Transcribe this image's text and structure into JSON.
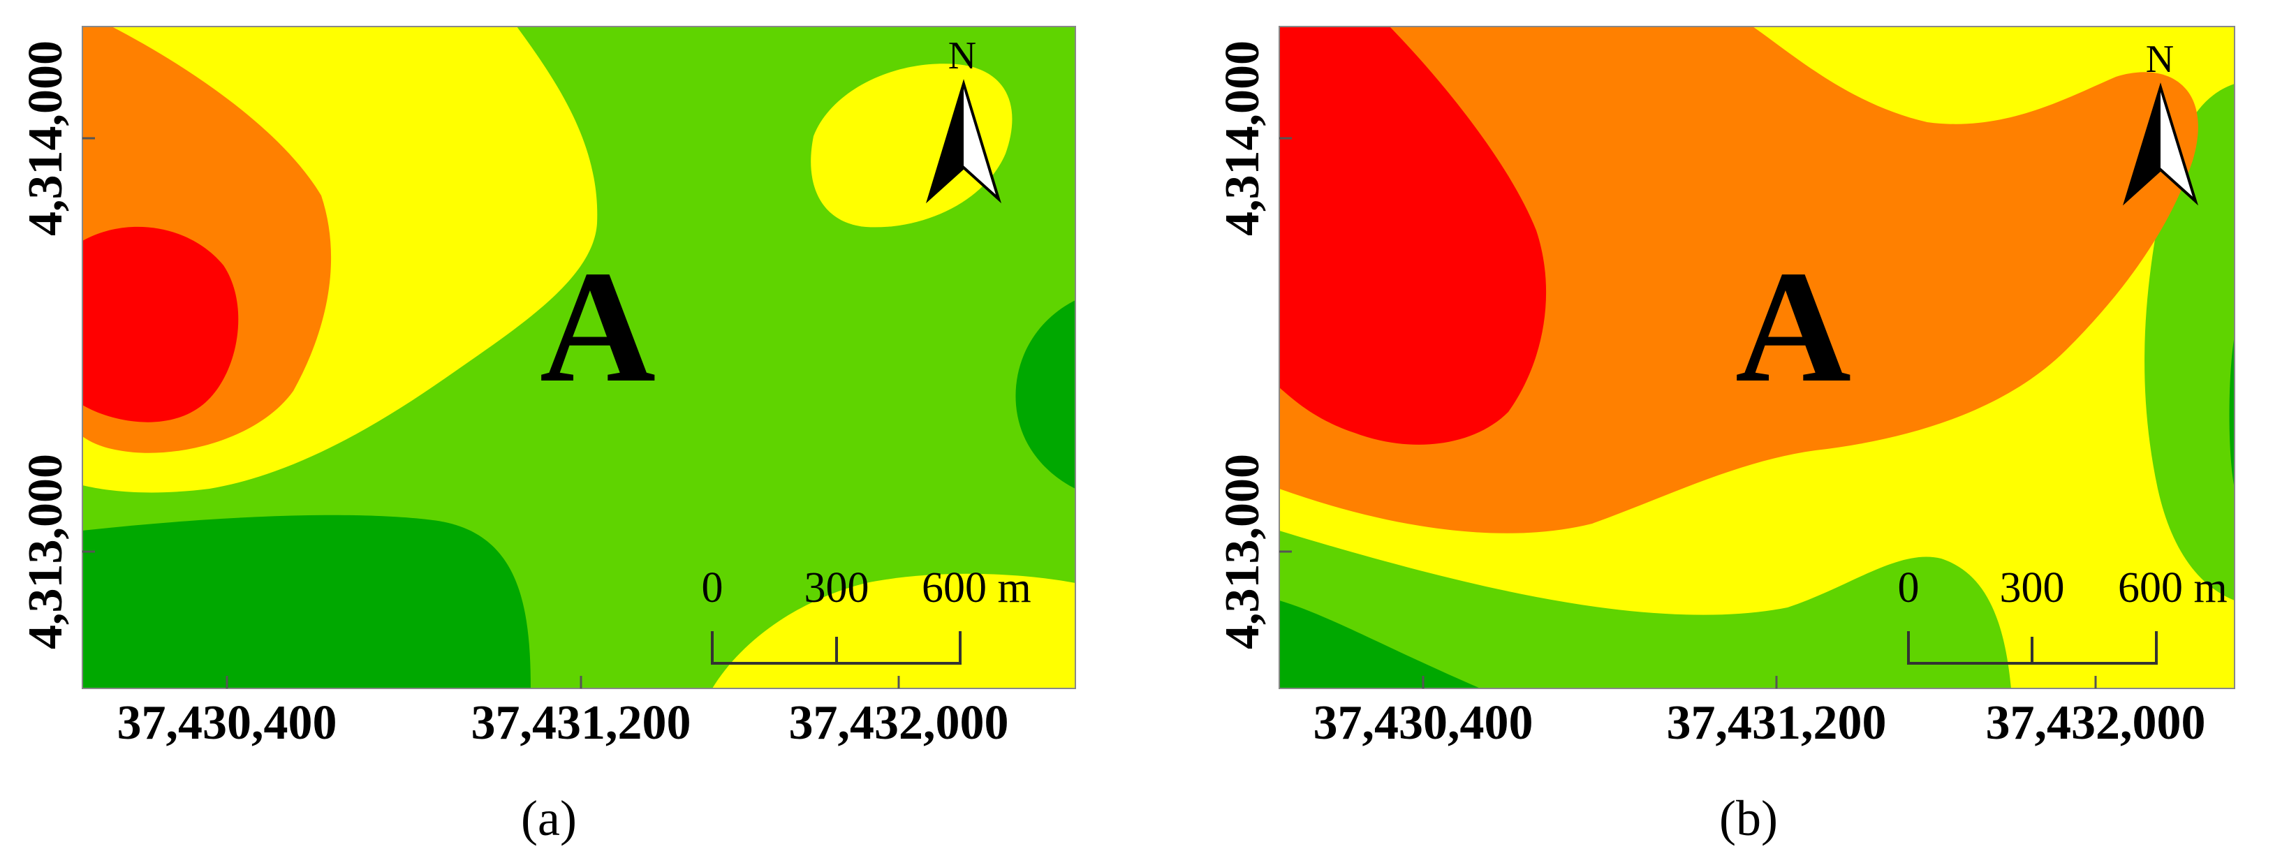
{
  "panels": [
    {
      "id": "a",
      "panel_label": "(a)",
      "site_label": "A",
      "north_label": "N",
      "x_ticks": [
        "37,430,400",
        "37,431,200",
        "37,432,000"
      ],
      "y_ticks": [
        "4,314,000",
        "4,313,000"
      ],
      "scale_labels": [
        "0",
        "300",
        "600 m"
      ]
    },
    {
      "id": "b",
      "panel_label": "(b)",
      "site_label": "A",
      "north_label": "N",
      "x_ticks": [
        "37,430,400",
        "37,431,200",
        "37,432,000"
      ],
      "y_ticks": [
        "4,314,000",
        "4,313,000"
      ],
      "scale_labels": [
        "0",
        "300",
        "600 m"
      ]
    }
  ],
  "colors": {
    "red": "#ff0000",
    "orange": "#ff8000",
    "yellow": "#ffff00",
    "light_green": "#5fd400",
    "dark_green": "#00a800"
  }
}
